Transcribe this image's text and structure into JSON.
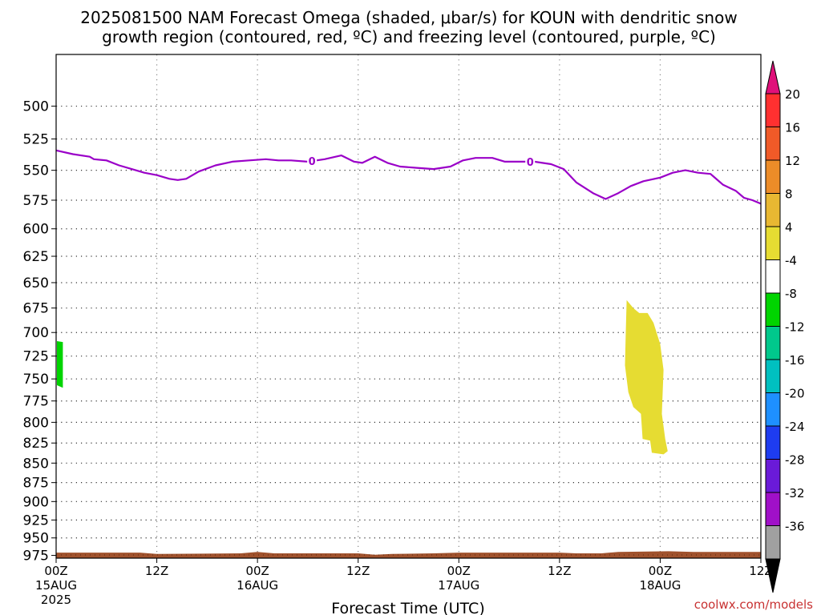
{
  "chart_data": {
    "type": "heatmap",
    "title_lines": [
      "2025081500 NAM Forecast Omega (shaded, μbar/s) for KOUN with dendritic snow",
      "growth region (contoured, red, ºC) and freezing level (contoured, purple, ºC)"
    ],
    "xlabel": "Forecast Time (UTC)",
    "ylabel": "",
    "y_scale": "log-pressure",
    "ylim": [
      979,
      463
    ],
    "y_ticks": [
      500,
      525,
      550,
      575,
      600,
      625,
      650,
      675,
      700,
      725,
      750,
      775,
      800,
      825,
      850,
      875,
      900,
      925,
      950,
      975
    ],
    "xlim": [
      0,
      84
    ],
    "x_ticks": [
      {
        "h": 0,
        "label": "00Z",
        "sub": "15AUG",
        "year": "2025"
      },
      {
        "h": 12,
        "label": "12Z",
        "sub": "",
        "year": ""
      },
      {
        "h": 24,
        "label": "00Z",
        "sub": "16AUG",
        "year": ""
      },
      {
        "h": 36,
        "label": "12Z",
        "sub": "",
        "year": ""
      },
      {
        "h": 48,
        "label": "00Z",
        "sub": "17AUG",
        "year": ""
      },
      {
        "h": 60,
        "label": "12Z",
        "sub": "",
        "year": ""
      },
      {
        "h": 72,
        "label": "00Z",
        "sub": "18AUG",
        "year": ""
      },
      {
        "h": 84,
        "label": "12Z",
        "sub": "",
        "year": ""
      }
    ],
    "grid": true,
    "freezing_level": {
      "color": "#9a00c8",
      "label": "0",
      "label_hours": [
        30.5,
        56.5
      ],
      "points": [
        [
          0,
          534
        ],
        [
          2,
          537
        ],
        [
          4,
          539
        ],
        [
          4.5,
          541
        ],
        [
          6,
          542
        ],
        [
          7.5,
          546
        ],
        [
          9,
          549
        ],
        [
          10.5,
          552
        ],
        [
          12,
          554
        ],
        [
          13.5,
          557
        ],
        [
          14.5,
          558
        ],
        [
          15.5,
          557
        ],
        [
          17,
          551
        ],
        [
          19,
          546
        ],
        [
          21,
          543
        ],
        [
          23,
          542
        ],
        [
          25,
          541
        ],
        [
          26.5,
          542
        ],
        [
          28,
          542
        ],
        [
          30,
          543
        ],
        [
          32,
          541
        ],
        [
          34,
          538
        ],
        [
          35.5,
          543
        ],
        [
          36.5,
          544
        ],
        [
          38,
          539
        ],
        [
          39.5,
          544
        ],
        [
          41,
          547
        ],
        [
          43,
          548
        ],
        [
          45,
          549
        ],
        [
          47,
          547
        ],
        [
          48.5,
          542
        ],
        [
          50,
          540
        ],
        [
          52,
          540
        ],
        [
          53.5,
          543
        ],
        [
          55,
          543
        ],
        [
          57,
          543
        ],
        [
          59,
          545
        ],
        [
          60.5,
          549
        ],
        [
          62,
          560
        ],
        [
          64,
          569
        ],
        [
          65.5,
          574
        ],
        [
          67,
          569
        ],
        [
          68.5,
          563
        ],
        [
          70,
          559
        ],
        [
          72,
          556
        ],
        [
          73.5,
          552
        ],
        [
          75,
          550
        ],
        [
          76.5,
          552
        ],
        [
          78,
          553
        ],
        [
          79.5,
          562
        ],
        [
          81,
          567
        ],
        [
          82,
          573
        ],
        [
          83,
          575
        ],
        [
          84,
          578
        ]
      ]
    },
    "omega_shaded": [
      {
        "value_range": [
          -8,
          -4
        ],
        "color": "#00d400",
        "points": [
          [
            0.1,
            709
          ],
          [
            0.8,
            710
          ],
          [
            0.8,
            760
          ],
          [
            0.1,
            757
          ]
        ]
      },
      {
        "value_range": [
          4,
          8
        ],
        "color": "#e6dc32",
        "points": [
          [
            68.0,
            667
          ],
          [
            68.8,
            675
          ],
          [
            69.5,
            680
          ],
          [
            70.5,
            680
          ],
          [
            71.2,
            690
          ],
          [
            72.0,
            712
          ],
          [
            72.4,
            740
          ],
          [
            72.2,
            790
          ],
          [
            72.6,
            820
          ],
          [
            72.9,
            835
          ],
          [
            72.4,
            839
          ],
          [
            71.0,
            837
          ],
          [
            70.8,
            822
          ],
          [
            69.9,
            820
          ],
          [
            69.7,
            790
          ],
          [
            68.8,
            782
          ],
          [
            68.2,
            765
          ],
          [
            67.8,
            735
          ],
          [
            67.9,
            700
          ]
        ]
      }
    ],
    "terrain": {
      "color": "#a0522d",
      "bottom": 979,
      "top": [
        [
          0,
          971
        ],
        [
          10,
          971
        ],
        [
          12,
          973
        ],
        [
          22,
          972
        ],
        [
          24,
          970
        ],
        [
          26,
          972
        ],
        [
          36,
          972
        ],
        [
          38,
          974
        ],
        [
          40,
          973
        ],
        [
          45,
          972
        ],
        [
          48,
          971
        ],
        [
          60,
          971
        ],
        [
          62,
          972
        ],
        [
          65,
          972
        ],
        [
          67,
          970
        ],
        [
          73,
          969
        ],
        [
          76,
          970
        ],
        [
          84,
          970
        ]
      ]
    },
    "colorbar": {
      "labels": [
        "20",
        "16",
        "12",
        "8",
        "4",
        "-4",
        "-8",
        "-12",
        "-16",
        "-20",
        "-24",
        "-28",
        "-32",
        "-36"
      ],
      "colors": [
        "#ff3030",
        "#f05a28",
        "#ec8c28",
        "#e8b832",
        "#e6dc32",
        "#ffffff",
        "#00d400",
        "#00c88c",
        "#00c0c0",
        "#1e90ff",
        "#1e3cf0",
        "#6a1ad8",
        "#a010c8",
        "#a0a0a0"
      ],
      "top_arrow_color": "#e0107a",
      "bottom_arrow_color": "#000000"
    },
    "credit": "coolwx.com/models",
    "credit_color": "#c83232"
  }
}
